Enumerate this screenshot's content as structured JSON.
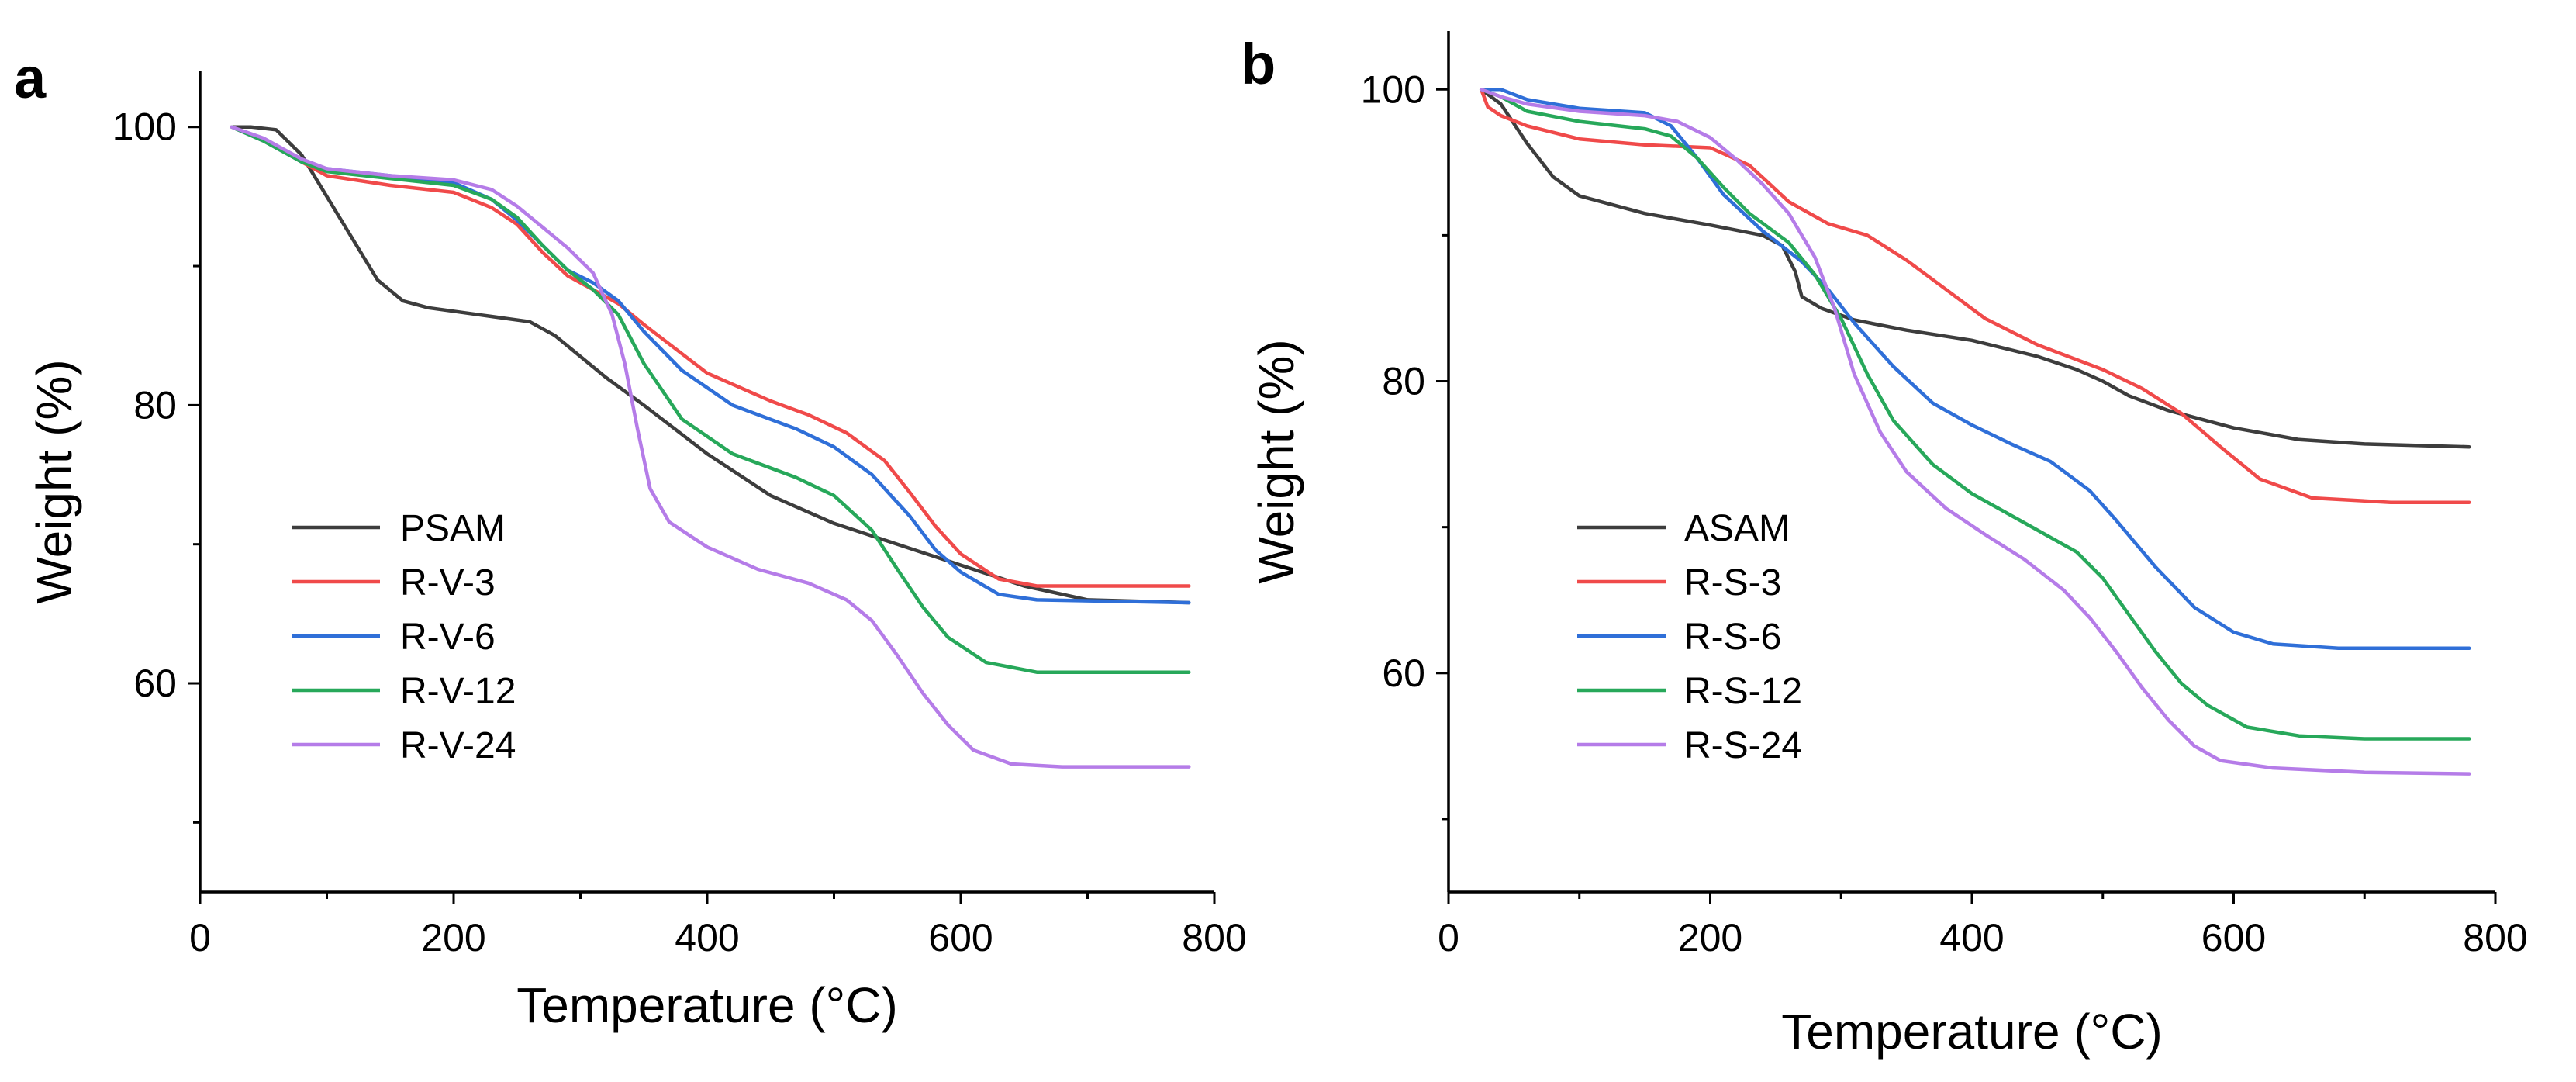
{
  "chart_data": [
    {
      "type": "line",
      "panel": "a",
      "title": "",
      "xlabel": "Temperature (°C)",
      "ylabel": "Weight (%)",
      "xlim": [
        0,
        800
      ],
      "ylim": [
        45,
        104
      ],
      "xticks": [
        0,
        200,
        400,
        600,
        800
      ],
      "yticks": [
        60,
        80,
        100
      ],
      "legend_position": "lower-left",
      "series": [
        {
          "name": "PSAM",
          "color": "#3d3d3d",
          "points": [
            [
              25,
              100
            ],
            [
              40,
              100
            ],
            [
              60,
              99.8
            ],
            [
              80,
              98
            ],
            [
              100,
              95
            ],
            [
              120,
              92
            ],
            [
              140,
              89
            ],
            [
              160,
              87.5
            ],
            [
              180,
              87
            ],
            [
              220,
              86.5
            ],
            [
              260,
              86
            ],
            [
              280,
              85
            ],
            [
              300,
              83.5
            ],
            [
              320,
              82
            ],
            [
              350,
              80
            ],
            [
              400,
              76.5
            ],
            [
              450,
              73.5
            ],
            [
              500,
              71.5
            ],
            [
              550,
              70
            ],
            [
              600,
              68.5
            ],
            [
              650,
              67
            ],
            [
              700,
              66
            ],
            [
              780,
              65.8
            ]
          ]
        },
        {
          "name": "R-V-3",
          "color": "#f04a4a",
          "points": [
            [
              25,
              100
            ],
            [
              50,
              99
            ],
            [
              80,
              97.5
            ],
            [
              100,
              96.5
            ],
            [
              150,
              95.8
            ],
            [
              200,
              95.3
            ],
            [
              230,
              94.2
            ],
            [
              250,
              93
            ],
            [
              270,
              91
            ],
            [
              290,
              89.3
            ],
            [
              310,
              88.3
            ],
            [
              330,
              87.3
            ],
            [
              350,
              85.8
            ],
            [
              400,
              82.3
            ],
            [
              450,
              80.3
            ],
            [
              480,
              79.3
            ],
            [
              510,
              78
            ],
            [
              540,
              76
            ],
            [
              560,
              73.7
            ],
            [
              580,
              71.3
            ],
            [
              600,
              69.3
            ],
            [
              630,
              67.5
            ],
            [
              660,
              67
            ],
            [
              780,
              67
            ]
          ]
        },
        {
          "name": "R-V-6",
          "color": "#2f6fd8",
          "points": [
            [
              25,
              100
            ],
            [
              50,
              99
            ],
            [
              80,
              97.5
            ],
            [
              100,
              97
            ],
            [
              150,
              96.5
            ],
            [
              200,
              96
            ],
            [
              230,
              94.8
            ],
            [
              250,
              93.3
            ],
            [
              270,
              91.5
            ],
            [
              290,
              89.7
            ],
            [
              310,
              88.8
            ],
            [
              330,
              87.5
            ],
            [
              350,
              85.3
            ],
            [
              380,
              82.5
            ],
            [
              420,
              80
            ],
            [
              470,
              78.3
            ],
            [
              500,
              77
            ],
            [
              530,
              75
            ],
            [
              560,
              72
            ],
            [
              580,
              69.6
            ],
            [
              600,
              68
            ],
            [
              630,
              66.4
            ],
            [
              660,
              66
            ],
            [
              780,
              65.8
            ]
          ]
        },
        {
          "name": "R-V-12",
          "color": "#27a85a",
          "points": [
            [
              25,
              100
            ],
            [
              50,
              99
            ],
            [
              80,
              97.5
            ],
            [
              100,
              96.8
            ],
            [
              150,
              96.3
            ],
            [
              200,
              95.8
            ],
            [
              230,
              94.8
            ],
            [
              250,
              93.5
            ],
            [
              270,
              91.5
            ],
            [
              290,
              89.7
            ],
            [
              310,
              88.3
            ],
            [
              330,
              86.5
            ],
            [
              350,
              83
            ],
            [
              380,
              79
            ],
            [
              420,
              76.5
            ],
            [
              470,
              74.8
            ],
            [
              500,
              73.5
            ],
            [
              530,
              71
            ],
            [
              550,
              68.2
            ],
            [
              570,
              65.5
            ],
            [
              590,
              63.3
            ],
            [
              620,
              61.5
            ],
            [
              660,
              60.8
            ],
            [
              780,
              60.8
            ]
          ]
        },
        {
          "name": "R-V-24",
          "color": "#b57ce8",
          "points": [
            [
              25,
              100
            ],
            [
              50,
              99.2
            ],
            [
              80,
              97.7
            ],
            [
              100,
              97
            ],
            [
              150,
              96.5
            ],
            [
              200,
              96.2
            ],
            [
              230,
              95.5
            ],
            [
              250,
              94.3
            ],
            [
              270,
              92.8
            ],
            [
              290,
              91.3
            ],
            [
              310,
              89.5
            ],
            [
              325,
              86.5
            ],
            [
              335,
              83
            ],
            [
              345,
              78.3
            ],
            [
              355,
              74
            ],
            [
              370,
              71.6
            ],
            [
              400,
              69.8
            ],
            [
              440,
              68.2
            ],
            [
              480,
              67.2
            ],
            [
              510,
              66
            ],
            [
              530,
              64.5
            ],
            [
              550,
              62
            ],
            [
              570,
              59.3
            ],
            [
              590,
              57
            ],
            [
              610,
              55.2
            ],
            [
              640,
              54.2
            ],
            [
              680,
              54
            ],
            [
              780,
              54
            ]
          ]
        }
      ]
    },
    {
      "type": "line",
      "panel": "b",
      "title": "",
      "xlabel": "Temperature (°C)",
      "ylabel": "Weight (%)",
      "xlim": [
        0,
        800
      ],
      "ylim": [
        45,
        104
      ],
      "xticks": [
        0,
        200,
        400,
        600,
        800
      ],
      "yticks": [
        60,
        80,
        100
      ],
      "legend_position": "lower-left",
      "series": [
        {
          "name": "ASAM",
          "color": "#3d3d3d",
          "points": [
            [
              25,
              100
            ],
            [
              40,
              99
            ],
            [
              60,
              96.3
            ],
            [
              80,
              94
            ],
            [
              100,
              92.7
            ],
            [
              150,
              91.5
            ],
            [
              200,
              90.7
            ],
            [
              240,
              90
            ],
            [
              255,
              89.3
            ],
            [
              265,
              87.5
            ],
            [
              270,
              85.8
            ],
            [
              285,
              85
            ],
            [
              310,
              84.2
            ],
            [
              350,
              83.5
            ],
            [
              400,
              82.8
            ],
            [
              450,
              81.7
            ],
            [
              480,
              80.8
            ],
            [
              500,
              80
            ],
            [
              520,
              79
            ],
            [
              550,
              78
            ],
            [
              600,
              76.8
            ],
            [
              650,
              76
            ],
            [
              700,
              75.7
            ],
            [
              780,
              75.5
            ]
          ]
        },
        {
          "name": "R-S-3",
          "color": "#f04a4a",
          "points": [
            [
              25,
              100
            ],
            [
              30,
              98.8
            ],
            [
              40,
              98.2
            ],
            [
              60,
              97.5
            ],
            [
              100,
              96.6
            ],
            [
              150,
              96.2
            ],
            [
              200,
              96
            ],
            [
              230,
              94.8
            ],
            [
              260,
              92.3
            ],
            [
              290,
              90.8
            ],
            [
              320,
              90
            ],
            [
              350,
              88.3
            ],
            [
              380,
              86.3
            ],
            [
              410,
              84.3
            ],
            [
              450,
              82.5
            ],
            [
              500,
              80.8
            ],
            [
              530,
              79.5
            ],
            [
              560,
              77.8
            ],
            [
              590,
              75.5
            ],
            [
              620,
              73.3
            ],
            [
              660,
              72
            ],
            [
              720,
              71.7
            ],
            [
              780,
              71.7
            ]
          ]
        },
        {
          "name": "R-S-6",
          "color": "#2f6fd8",
          "points": [
            [
              25,
              100
            ],
            [
              40,
              100
            ],
            [
              60,
              99.3
            ],
            [
              100,
              98.7
            ],
            [
              150,
              98.4
            ],
            [
              170,
              97.5
            ],
            [
              190,
              95.3
            ],
            [
              210,
              92.8
            ],
            [
              240,
              90.3
            ],
            [
              270,
              88.2
            ],
            [
              290,
              86.3
            ],
            [
              310,
              84
            ],
            [
              340,
              81
            ],
            [
              370,
              78.5
            ],
            [
              400,
              77
            ],
            [
              430,
              75.7
            ],
            [
              460,
              74.5
            ],
            [
              490,
              72.5
            ],
            [
              510,
              70.5
            ],
            [
              540,
              67.3
            ],
            [
              570,
              64.5
            ],
            [
              600,
              62.8
            ],
            [
              630,
              62
            ],
            [
              680,
              61.7
            ],
            [
              780,
              61.7
            ]
          ]
        },
        {
          "name": "R-S-12",
          "color": "#27a85a",
          "points": [
            [
              25,
              100
            ],
            [
              40,
              99.5
            ],
            [
              60,
              98.5
            ],
            [
              100,
              97.8
            ],
            [
              150,
              97.3
            ],
            [
              170,
              96.8
            ],
            [
              190,
              95.3
            ],
            [
              210,
              93.3
            ],
            [
              230,
              91.5
            ],
            [
              260,
              89.5
            ],
            [
              280,
              87.3
            ],
            [
              300,
              84.3
            ],
            [
              320,
              80.5
            ],
            [
              340,
              77.3
            ],
            [
              370,
              74.3
            ],
            [
              400,
              72.3
            ],
            [
              440,
              70.3
            ],
            [
              480,
              68.3
            ],
            [
              500,
              66.5
            ],
            [
              520,
              64
            ],
            [
              540,
              61.5
            ],
            [
              560,
              59.3
            ],
            [
              580,
              57.8
            ],
            [
              610,
              56.3
            ],
            [
              650,
              55.7
            ],
            [
              700,
              55.5
            ],
            [
              780,
              55.5
            ]
          ]
        },
        {
          "name": "R-S-24",
          "color": "#b57ce8",
          "points": [
            [
              25,
              100
            ],
            [
              40,
              99.5
            ],
            [
              60,
              99
            ],
            [
              100,
              98.5
            ],
            [
              150,
              98.2
            ],
            [
              175,
              97.8
            ],
            [
              200,
              96.7
            ],
            [
              220,
              95.2
            ],
            [
              240,
              93.5
            ],
            [
              260,
              91.5
            ],
            [
              280,
              88.5
            ],
            [
              295,
              85
            ],
            [
              310,
              80.5
            ],
            [
              330,
              76.5
            ],
            [
              350,
              73.8
            ],
            [
              380,
              71.3
            ],
            [
              410,
              69.5
            ],
            [
              440,
              67.8
            ],
            [
              470,
              65.7
            ],
            [
              490,
              63.8
            ],
            [
              510,
              61.5
            ],
            [
              530,
              59
            ],
            [
              550,
              56.8
            ],
            [
              570,
              55
            ],
            [
              590,
              54
            ],
            [
              630,
              53.5
            ],
            [
              700,
              53.2
            ],
            [
              780,
              53.1
            ]
          ]
        }
      ]
    }
  ]
}
